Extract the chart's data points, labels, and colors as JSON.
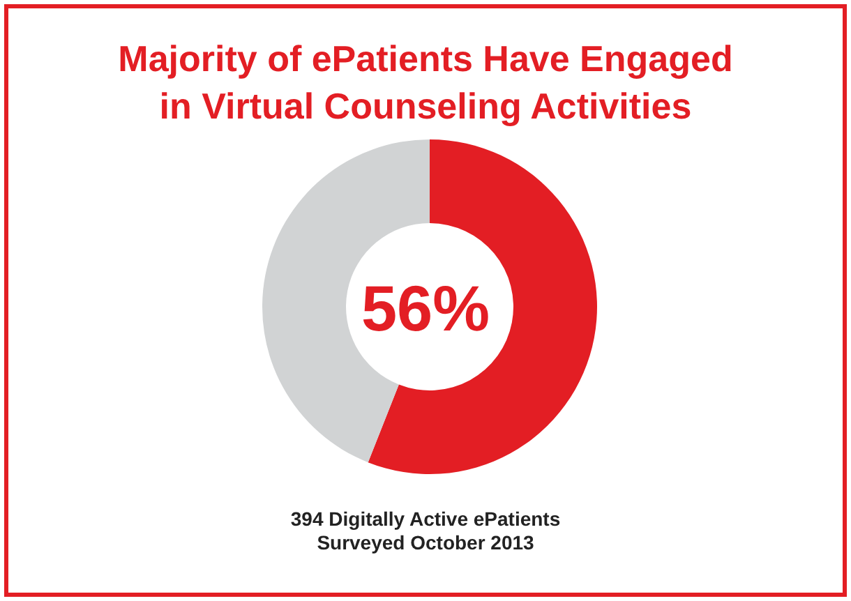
{
  "chart_data": {
    "type": "donut",
    "title": "Majority of ePatients Have Engaged\nin Virtual Counseling Activities",
    "categories": [
      null,
      null
    ],
    "values": [
      56,
      44
    ],
    "colors": [
      "#e31e24",
      "#d1d3d4"
    ],
    "annotations": [
      "56%",
      "394 Digitally Active ePatients",
      "Surveyed October 2013"
    ]
  }
}
